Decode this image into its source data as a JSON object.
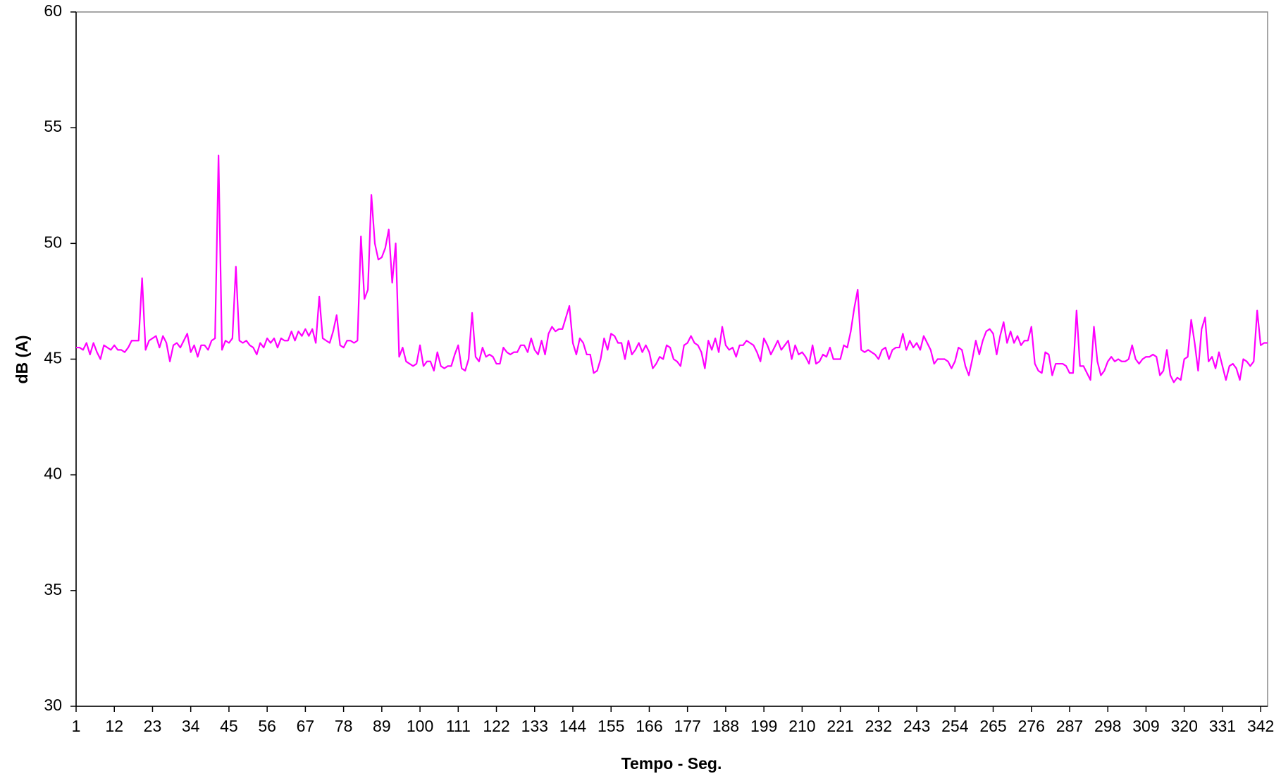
{
  "chart_data": {
    "type": "line",
    "x_label": "Tempo - Seg.",
    "y_label": "dB (A)",
    "x": [
      1,
      2,
      3,
      4,
      5,
      6,
      7,
      8,
      9,
      10,
      11,
      12,
      13,
      14,
      15,
      16,
      17,
      18,
      19,
      20,
      21,
      22,
      23,
      24,
      25,
      26,
      27,
      28,
      29,
      30,
      31,
      32,
      33,
      34,
      35,
      36,
      37,
      38,
      39,
      40,
      41,
      42,
      43,
      44,
      45,
      46,
      47,
      48,
      49,
      50,
      51,
      52,
      53,
      54,
      55,
      56,
      57,
      58,
      59,
      60,
      61,
      62,
      63,
      64,
      65,
      66,
      67,
      68,
      69,
      70,
      71,
      72,
      73,
      74,
      75,
      76,
      77,
      78,
      79,
      80,
      81,
      82,
      83,
      84,
      85,
      86,
      87,
      88,
      89,
      90,
      91,
      92,
      93,
      94,
      95,
      96,
      97,
      98,
      99,
      100,
      101,
      102,
      103,
      104,
      105,
      106,
      107,
      108,
      109,
      110,
      111,
      112,
      113,
      114,
      115,
      116,
      117,
      118,
      119,
      120,
      121,
      122,
      123,
      124,
      125,
      126,
      127,
      128,
      129,
      130,
      131,
      132,
      133,
      134,
      135,
      136,
      137,
      138,
      139,
      140,
      141,
      142,
      143,
      144,
      145,
      146,
      147,
      148,
      149,
      150,
      151,
      152,
      153,
      154,
      155,
      156,
      157,
      158,
      159,
      160,
      161,
      162,
      163,
      164,
      165,
      166,
      167,
      168,
      169,
      170,
      171,
      172,
      173,
      174,
      175,
      176,
      177,
      178,
      179,
      180,
      181,
      182,
      183,
      184,
      185,
      186,
      187,
      188,
      189,
      190,
      191,
      192,
      193,
      194,
      195,
      196,
      197,
      198,
      199,
      200,
      201,
      202,
      203,
      204,
      205,
      206,
      207,
      208,
      209,
      210,
      211,
      212,
      213,
      214,
      215,
      216,
      217,
      218,
      219,
      220,
      221,
      222,
      223,
      224,
      225,
      226,
      227,
      228,
      229,
      230,
      231,
      232,
      233,
      234,
      235,
      236,
      237,
      238,
      239,
      240,
      241,
      242,
      243,
      244,
      245,
      246,
      247,
      248,
      249,
      250,
      251,
      252,
      253,
      254,
      255,
      256,
      257,
      258,
      259,
      260,
      261,
      262,
      263,
      264,
      265,
      266,
      267,
      268,
      269,
      270,
      271,
      272,
      273,
      274,
      275,
      276,
      277,
      278,
      279,
      280,
      281,
      282,
      283,
      284,
      285,
      286,
      287,
      288,
      289,
      290,
      291,
      292,
      293,
      294,
      295,
      296,
      297,
      298,
      299,
      300,
      301,
      302,
      303,
      304,
      305,
      306,
      307,
      308,
      309,
      310,
      311,
      312,
      313,
      314,
      315,
      316,
      317,
      318,
      319,
      320,
      321,
      322,
      323,
      324,
      325,
      326,
      327,
      328,
      329,
      330,
      331,
      332,
      333,
      334,
      335,
      336,
      337,
      338,
      339,
      340,
      341,
      342,
      343,
      344
    ],
    "series": [
      {
        "color": "#ff00ff",
        "values": [
          45.5,
          45.5,
          45.4,
          45.7,
          45.2,
          45.7,
          45.3,
          45.0,
          45.6,
          45.5,
          45.4,
          45.6,
          45.4,
          45.4,
          45.3,
          45.5,
          45.8,
          45.8,
          45.8,
          48.5,
          45.4,
          45.8,
          45.9,
          46.0,
          45.5,
          46.0,
          45.7,
          44.9,
          45.6,
          45.7,
          45.5,
          45.8,
          46.1,
          45.3,
          45.6,
          45.1,
          45.6,
          45.6,
          45.4,
          45.8,
          45.9,
          53.8,
          45.4,
          45.8,
          45.7,
          45.9,
          49.0,
          45.8,
          45.7,
          45.8,
          45.6,
          45.5,
          45.2,
          45.7,
          45.5,
          45.9,
          45.7,
          45.9,
          45.5,
          45.9,
          45.8,
          45.8,
          46.2,
          45.8,
          46.2,
          46.0,
          46.3,
          46.0,
          46.3,
          45.7,
          47.7,
          45.9,
          45.8,
          45.7,
          46.2,
          46.9,
          45.6,
          45.5,
          45.8,
          45.8,
          45.7,
          45.8,
          50.3,
          47.6,
          48.0,
          52.1,
          50.0,
          49.3,
          49.4,
          49.8,
          50.6,
          48.3,
          50.0,
          45.1,
          45.5,
          44.9,
          44.8,
          44.7,
          44.8,
          45.6,
          44.7,
          44.9,
          44.9,
          44.5,
          45.3,
          44.7,
          44.6,
          44.7,
          44.7,
          45.2,
          45.6,
          44.6,
          44.5,
          45.0,
          47.0,
          45.1,
          44.9,
          45.5,
          45.1,
          45.2,
          45.1,
          44.8,
          44.8,
          45.5,
          45.3,
          45.2,
          45.3,
          45.3,
          45.6,
          45.6,
          45.3,
          45.9,
          45.4,
          45.2,
          45.8,
          45.2,
          46.1,
          46.4,
          46.2,
          46.3,
          46.3,
          46.8,
          47.3,
          45.7,
          45.2,
          45.9,
          45.7,
          45.2,
          45.2,
          44.4,
          44.5,
          45.0,
          45.9,
          45.4,
          46.1,
          46.0,
          45.7,
          45.7,
          45.0,
          45.8,
          45.2,
          45.4,
          45.7,
          45.3,
          45.6,
          45.3,
          44.6,
          44.8,
          45.1,
          45.0,
          45.6,
          45.5,
          45.0,
          44.9,
          44.7,
          45.6,
          45.7,
          46.0,
          45.7,
          45.6,
          45.3,
          44.6,
          45.8,
          45.4,
          45.9,
          45.3,
          46.4,
          45.6,
          45.4,
          45.5,
          45.1,
          45.6,
          45.6,
          45.8,
          45.7,
          45.6,
          45.3,
          44.9,
          45.9,
          45.6,
          45.2,
          45.5,
          45.8,
          45.4,
          45.6,
          45.8,
          45.0,
          45.6,
          45.2,
          45.3,
          45.1,
          44.8,
          45.6,
          44.8,
          44.9,
          45.2,
          45.1,
          45.5,
          45.0,
          45.0,
          45.0,
          45.6,
          45.5,
          46.2,
          47.2,
          48.0,
          45.4,
          45.3,
          45.4,
          45.3,
          45.2,
          45.0,
          45.4,
          45.5,
          45.0,
          45.4,
          45.5,
          45.5,
          46.1,
          45.4,
          45.8,
          45.5,
          45.7,
          45.4,
          46.0,
          45.7,
          45.4,
          44.8,
          45.0,
          45.0,
          45.0,
          44.9,
          44.6,
          44.9,
          45.5,
          45.4,
          44.7,
          44.3,
          45.0,
          45.8,
          45.2,
          45.8,
          46.2,
          46.3,
          46.1,
          45.2,
          46.0,
          46.6,
          45.7,
          46.2,
          45.7,
          46.0,
          45.6,
          45.8,
          45.8,
          46.4,
          44.8,
          44.5,
          44.4,
          45.3,
          45.2,
          44.3,
          44.8,
          44.8,
          44.8,
          44.7,
          44.4,
          44.4,
          47.1,
          44.7,
          44.7,
          44.4,
          44.1,
          46.4,
          44.9,
          44.3,
          44.5,
          44.9,
          45.1,
          44.9,
          45.0,
          44.9,
          44.9,
          45.0,
          45.6,
          45.0,
          44.8,
          45.0,
          45.1,
          45.1,
          45.2,
          45.1,
          44.3,
          44.5,
          45.4,
          44.3,
          44.0,
          44.2,
          44.1,
          45.0,
          45.1,
          46.7,
          45.7,
          44.5,
          46.3,
          46.8,
          44.9,
          45.1,
          44.6,
          45.3,
          44.7,
          44.1,
          44.7,
          44.8,
          44.6,
          44.1,
          45.0,
          44.9,
          44.7,
          44.9,
          47.1,
          45.6,
          45.7,
          45.7
        ]
      }
    ],
    "xlim": [
      1,
      344
    ],
    "xticks": [
      1,
      12,
      23,
      34,
      45,
      56,
      67,
      78,
      89,
      100,
      111,
      122,
      133,
      144,
      155,
      166,
      177,
      188,
      199,
      210,
      221,
      232,
      243,
      254,
      265,
      276,
      287,
      298,
      309,
      320,
      331,
      342
    ],
    "ylim": [
      30,
      60
    ],
    "yticks": [
      30,
      35,
      40,
      45,
      50,
      55,
      60
    ],
    "grid": false
  }
}
